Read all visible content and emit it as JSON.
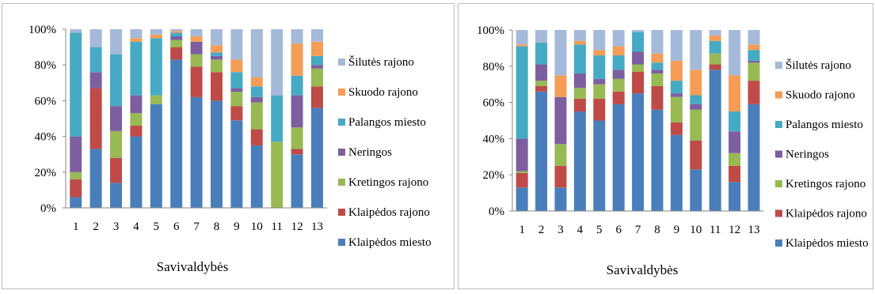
{
  "colors": {
    "Klaipėdos miesto": "#4a7ebb",
    "Klaipėdos rajono": "#be4b48",
    "Kretingos rajono": "#98b954",
    "Neringos": "#7d5fa0",
    "Palangos miesto": "#46aac4",
    "Skuodo rajono": "#f59d56",
    "Šilutės rajono": "#a5b9d9"
  },
  "chart_data": [
    {
      "type": "bar",
      "stacked": true,
      "normalized": true,
      "title": "",
      "xlabel": "Savivaldybės",
      "ylabel": "",
      "ylim": [
        0,
        100
      ],
      "yticks": [
        "0%",
        "20%",
        "40%",
        "60%",
        "80%",
        "100%"
      ],
      "grid": false,
      "legend_position": "right",
      "legend_order": [
        "Šilutės rajono",
        "Skuodo rajono",
        "Palangos miesto",
        "Neringos",
        "Kretingos rajono",
        "Klaipėdos rajono",
        "Klaipėdos miesto"
      ],
      "categories": [
        "1",
        "2",
        "3",
        "4",
        "5",
        "6",
        "7",
        "8",
        "9",
        "10",
        "11",
        "12",
        "13"
      ],
      "series": [
        {
          "name": "Klaipėdos miesto",
          "values": [
            6,
            33,
            14,
            40,
            58,
            83,
            62,
            60,
            49,
            35,
            0,
            30,
            56
          ]
        },
        {
          "name": "Klaipėdos rajono",
          "values": [
            10,
            34,
            14,
            6,
            0,
            7,
            17,
            16,
            8,
            9,
            0,
            3,
            12
          ]
        },
        {
          "name": "Kretingos rajono",
          "values": [
            4,
            0,
            15,
            7,
            5,
            4,
            7,
            7,
            8,
            15,
            37,
            12,
            10
          ]
        },
        {
          "name": "Neringos",
          "values": [
            20,
            9,
            14,
            10,
            0,
            2,
            7,
            2,
            2,
            3,
            0,
            18,
            2
          ]
        },
        {
          "name": "Palangos miesto",
          "values": [
            58,
            14,
            29,
            30,
            32,
            2,
            0,
            2,
            9,
            6,
            26,
            11,
            5
          ]
        },
        {
          "name": "Skuodo rajono",
          "values": [
            0,
            0,
            0,
            2,
            2,
            1,
            3,
            4,
            7,
            5,
            0,
            18,
            8
          ]
        },
        {
          "name": "Šilutės rajono",
          "values": [
            2,
            10,
            14,
            5,
            3,
            1,
            4,
            9,
            17,
            27,
            37,
            8,
            7
          ]
        }
      ]
    },
    {
      "type": "bar",
      "stacked": true,
      "normalized": true,
      "title": "",
      "xlabel": "Savivaldybės",
      "ylabel": "",
      "ylim": [
        0,
        100
      ],
      "yticks": [
        "0%",
        "20%",
        "40%",
        "60%",
        "80%",
        "100%"
      ],
      "grid": false,
      "legend_position": "right",
      "legend_order": [
        "Šilutės rajono",
        "Skuodo rajono",
        "Palangos miesto",
        "Neringos",
        "Kretingos rajono",
        "Klaipėdos rajono",
        "Klaipėdos miesto"
      ],
      "categories": [
        "1",
        "2",
        "3",
        "4",
        "5",
        "6",
        "7",
        "8",
        "9",
        "10",
        "11",
        "12",
        "13"
      ],
      "series": [
        {
          "name": "Klaipėdos miesto",
          "values": [
            13,
            66,
            13,
            55,
            50,
            59,
            65,
            56,
            42,
            23,
            78,
            16,
            59
          ]
        },
        {
          "name": "Klaipėdos rajono",
          "values": [
            8,
            3,
            12,
            7,
            12,
            7,
            12,
            13,
            7,
            16,
            3,
            9,
            13
          ]
        },
        {
          "name": "Kretingos rajono",
          "values": [
            1,
            3,
            12,
            6,
            8,
            7,
            4,
            7,
            14,
            17,
            6,
            7,
            10
          ]
        },
        {
          "name": "Neringos",
          "values": [
            18,
            9,
            26,
            8,
            3,
            5,
            7,
            2,
            2,
            3,
            0,
            12,
            1
          ]
        },
        {
          "name": "Palangos miesto",
          "values": [
            51,
            12,
            0,
            16,
            13,
            8,
            11,
            4,
            7,
            5,
            7,
            11,
            6
          ]
        },
        {
          "name": "Skuodo rajono",
          "values": [
            1,
            0,
            12,
            2,
            3,
            5,
            0,
            5,
            11,
            14,
            3,
            20,
            3
          ]
        },
        {
          "name": "Šilutės rajono",
          "values": [
            8,
            7,
            25,
            6,
            11,
            9,
            1,
            13,
            17,
            22,
            3,
            25,
            8
          ]
        }
      ]
    }
  ]
}
